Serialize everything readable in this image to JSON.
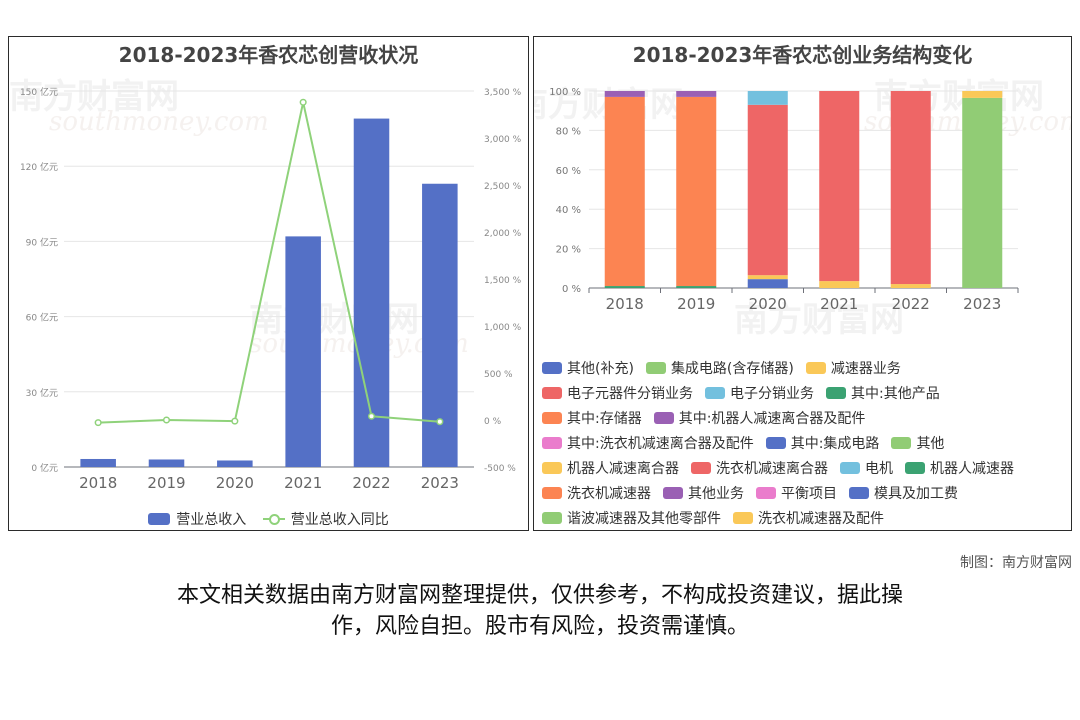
{
  "charts": {
    "left_title": "2018-2023年香农芯创营收状况",
    "right_title": "2018-2023年香农芯创业务结构变化"
  },
  "watermark": {
    "cn": "南方财富网",
    "en": "southmoney.com"
  },
  "credit": "制图：南方财富网",
  "disclaimer": {
    "line1": "本文相关数据由南方财富网整理提供，仅供参考，不构成投资建议，据此操",
    "line2": "作，风险自担。股市有风险，投资需谨慎。"
  },
  "chart_data": [
    {
      "type": "bar",
      "title": "2018-2023年香农芯创营收状况",
      "categories": [
        "2018",
        "2019",
        "2020",
        "2021",
        "2022",
        "2023"
      ],
      "series": [
        {
          "name": "营业总收入",
          "type": "bar",
          "axis": "left",
          "color": "#5470c6",
          "values": [
            3.2,
            3.0,
            2.6,
            92.0,
            139.0,
            113.0
          ]
        },
        {
          "name": "营业总收入同比",
          "type": "line",
          "axis": "right",
          "color": "#8fd27a",
          "values": [
            -28,
            0,
            -12,
            3380,
            40,
            -18
          ]
        }
      ],
      "y_left": {
        "ylim": [
          0,
          150
        ],
        "ticks": [
          0,
          30,
          60,
          90,
          120,
          150
        ],
        "tick_labels": [
          "0 亿元",
          "30 亿元",
          "60 亿元",
          "90 亿元",
          "120 亿元",
          "150 亿元"
        ]
      },
      "y_right": {
        "ylim": [
          -500,
          3500
        ],
        "ticks": [
          -500,
          0,
          500,
          1000,
          1500,
          2000,
          2500,
          3000,
          3500
        ],
        "tick_labels": [
          "-500 %",
          "0 %",
          "500 %",
          "1,000 %",
          "1,500 %",
          "2,000 %",
          "2,500 %",
          "3,000 %",
          "3,500 %"
        ]
      },
      "grid": true,
      "legend_position": "bottom"
    },
    {
      "type": "bar",
      "stacked": true,
      "title": "2018-2023年香农芯创业务结构变化",
      "categories": [
        "2018",
        "2019",
        "2020",
        "2021",
        "2022",
        "2023"
      ],
      "ylim": [
        0,
        100
      ],
      "y_ticks": [
        0,
        20,
        40,
        60,
        80,
        100
      ],
      "y_tick_labels": [
        "0 %",
        "20 %",
        "40 %",
        "60 %",
        "80 %",
        "100 %"
      ],
      "grid": true,
      "legend_position": "bottom",
      "series": [
        {
          "name": "其他(补充)",
          "color": "#5470c6",
          "values": [
            0,
            0,
            0,
            0,
            0,
            0
          ]
        },
        {
          "name": "集成电路(含存储器)",
          "color": "#91cc75",
          "values": [
            0,
            0,
            0,
            0,
            0,
            0
          ]
        },
        {
          "name": "减速器业务",
          "color": "#fac858",
          "values": [
            0,
            0,
            0,
            0,
            0,
            0
          ]
        },
        {
          "name": "电子元器件分销业务",
          "color": "#ee6666",
          "values": [
            0,
            0,
            0,
            0,
            0,
            0
          ]
        },
        {
          "name": "电子分销业务",
          "color": "#73c0de",
          "values": [
            0,
            0,
            0,
            0,
            0,
            0
          ]
        },
        {
          "name": "其中:其他产品",
          "color": "#3ba272",
          "values": [
            1,
            1,
            0,
            0,
            0,
            0
          ]
        },
        {
          "name": "其中:存储器",
          "color": "#fc8452",
          "values": [
            0,
            0,
            0,
            0,
            0,
            0
          ]
        },
        {
          "name": "其中:机器人减速离合器及配件",
          "color": "#9a60b4",
          "values": [
            0,
            0,
            0,
            0,
            0,
            0
          ]
        },
        {
          "name": "其中:洗衣机减速离合器及配件",
          "color": "#ea7ccc",
          "values": [
            0,
            0,
            0,
            0,
            0,
            0
          ]
        },
        {
          "name": "其中:集成电路",
          "color": "#5470c6",
          "values": [
            0,
            0,
            4.5,
            0,
            0,
            0
          ]
        },
        {
          "name": "其他",
          "color": "#91cc75",
          "values": [
            0,
            0,
            0,
            0,
            0,
            96.5
          ]
        },
        {
          "name": "机器人减速离合器",
          "color": "#fac858",
          "values": [
            0,
            0,
            2,
            3.5,
            2,
            3.5
          ]
        },
        {
          "name": "洗衣机减速离合器",
          "color": "#ee6666",
          "values": [
            0,
            0,
            86.5,
            96.5,
            98,
            0
          ]
        },
        {
          "name": "电机",
          "color": "#73c0de",
          "values": [
            0,
            0,
            7,
            0,
            0,
            0
          ]
        },
        {
          "name": "机器人减速器",
          "color": "#3ba272",
          "values": [
            0,
            0,
            0,
            0,
            0,
            0
          ]
        },
        {
          "name": "洗衣机减速器",
          "color": "#fc8452",
          "values": [
            96,
            96,
            0,
            0,
            0,
            0
          ]
        },
        {
          "name": "其他业务",
          "color": "#9a60b4",
          "values": [
            3,
            3,
            0,
            0,
            0,
            0
          ]
        },
        {
          "name": "平衡项目",
          "color": "#ea7ccc",
          "values": [
            0,
            0,
            0,
            0,
            0,
            0
          ]
        },
        {
          "name": "模具及加工费",
          "color": "#5470c6",
          "values": [
            0,
            0,
            0,
            0,
            0,
            0
          ]
        },
        {
          "name": "谐波减速器及其他零部件",
          "color": "#91cc75",
          "values": [
            0,
            0,
            0,
            0,
            0,
            0
          ]
        },
        {
          "name": "洗衣机减速器及配件",
          "color": "#fac858",
          "values": [
            0,
            0,
            0,
            0,
            0,
            0
          ]
        }
      ]
    }
  ]
}
